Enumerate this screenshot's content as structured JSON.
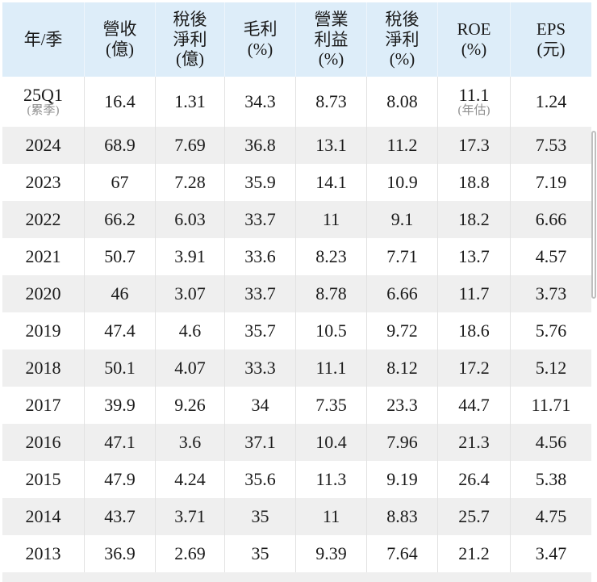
{
  "colors": {
    "header_bg": "#ddedf9",
    "row_alt_bg": "#efefef",
    "row_bg": "#ffffff",
    "text": "#1a1a1a",
    "note_text": "#909090",
    "divider": "#e2e2e2"
  },
  "table": {
    "headers": [
      {
        "label": "年/季"
      },
      {
        "label": "營收\n(億)"
      },
      {
        "label": "稅後\n淨利\n(億)"
      },
      {
        "label": "毛利\n(%)"
      },
      {
        "label": "營業\n利益\n(%)"
      },
      {
        "label": "稅後\n淨利\n(%)"
      },
      {
        "label": "ROE\n(%)"
      },
      {
        "label": "EPS\n(元)"
      }
    ],
    "rows": [
      {
        "cells": [
          {
            "text": "25Q1",
            "note": "(累季)"
          },
          {
            "text": "16.4"
          },
          {
            "text": "1.31"
          },
          {
            "text": "34.3"
          },
          {
            "text": "8.73"
          },
          {
            "text": "8.08"
          },
          {
            "text": "11.1",
            "note": "(年估)"
          },
          {
            "text": "1.24"
          }
        ]
      },
      {
        "cells": [
          {
            "text": "2024"
          },
          {
            "text": "68.9"
          },
          {
            "text": "7.69"
          },
          {
            "text": "36.8"
          },
          {
            "text": "13.1"
          },
          {
            "text": "11.2"
          },
          {
            "text": "17.3"
          },
          {
            "text": "7.53"
          }
        ]
      },
      {
        "cells": [
          {
            "text": "2023"
          },
          {
            "text": "67"
          },
          {
            "text": "7.28"
          },
          {
            "text": "35.9"
          },
          {
            "text": "14.1"
          },
          {
            "text": "10.9"
          },
          {
            "text": "18.8"
          },
          {
            "text": "7.19"
          }
        ]
      },
      {
        "cells": [
          {
            "text": "2022"
          },
          {
            "text": "66.2"
          },
          {
            "text": "6.03"
          },
          {
            "text": "33.7"
          },
          {
            "text": "11"
          },
          {
            "text": "9.1"
          },
          {
            "text": "18.2"
          },
          {
            "text": "6.66"
          }
        ]
      },
      {
        "cells": [
          {
            "text": "2021"
          },
          {
            "text": "50.7"
          },
          {
            "text": "3.91"
          },
          {
            "text": "33.6"
          },
          {
            "text": "8.23"
          },
          {
            "text": "7.71"
          },
          {
            "text": "13.7"
          },
          {
            "text": "4.57"
          }
        ]
      },
      {
        "cells": [
          {
            "text": "2020"
          },
          {
            "text": "46"
          },
          {
            "text": "3.07"
          },
          {
            "text": "33.7"
          },
          {
            "text": "8.78"
          },
          {
            "text": "6.66"
          },
          {
            "text": "11.7"
          },
          {
            "text": "3.73"
          }
        ]
      },
      {
        "cells": [
          {
            "text": "2019"
          },
          {
            "text": "47.4"
          },
          {
            "text": "4.6"
          },
          {
            "text": "35.7"
          },
          {
            "text": "10.5"
          },
          {
            "text": "9.72"
          },
          {
            "text": "18.6"
          },
          {
            "text": "5.76"
          }
        ]
      },
      {
        "cells": [
          {
            "text": "2018"
          },
          {
            "text": "50.1"
          },
          {
            "text": "4.07"
          },
          {
            "text": "33.3"
          },
          {
            "text": "11.1"
          },
          {
            "text": "8.12"
          },
          {
            "text": "17.2"
          },
          {
            "text": "5.12"
          }
        ]
      },
      {
        "cells": [
          {
            "text": "2017"
          },
          {
            "text": "39.9"
          },
          {
            "text": "9.26"
          },
          {
            "text": "34"
          },
          {
            "text": "7.35"
          },
          {
            "text": "23.3"
          },
          {
            "text": "44.7"
          },
          {
            "text": "11.71"
          }
        ]
      },
      {
        "cells": [
          {
            "text": "2016"
          },
          {
            "text": "47.1"
          },
          {
            "text": "3.6"
          },
          {
            "text": "37.1"
          },
          {
            "text": "10.4"
          },
          {
            "text": "7.96"
          },
          {
            "text": "21.3"
          },
          {
            "text": "4.56"
          }
        ]
      },
      {
        "cells": [
          {
            "text": "2015"
          },
          {
            "text": "47.9"
          },
          {
            "text": "4.24"
          },
          {
            "text": "35.6"
          },
          {
            "text": "11.3"
          },
          {
            "text": "9.19"
          },
          {
            "text": "26.4"
          },
          {
            "text": "5.38"
          }
        ]
      },
      {
        "cells": [
          {
            "text": "2014"
          },
          {
            "text": "43.7"
          },
          {
            "text": "3.71"
          },
          {
            "text": "35"
          },
          {
            "text": "11"
          },
          {
            "text": "8.83"
          },
          {
            "text": "25.7"
          },
          {
            "text": "4.75"
          }
        ]
      },
      {
        "cells": [
          {
            "text": "2013"
          },
          {
            "text": "36.9"
          },
          {
            "text": "2.69"
          },
          {
            "text": "35"
          },
          {
            "text": "9.39"
          },
          {
            "text": "7.64"
          },
          {
            "text": "21.2"
          },
          {
            "text": "3.47"
          }
        ]
      }
    ]
  }
}
